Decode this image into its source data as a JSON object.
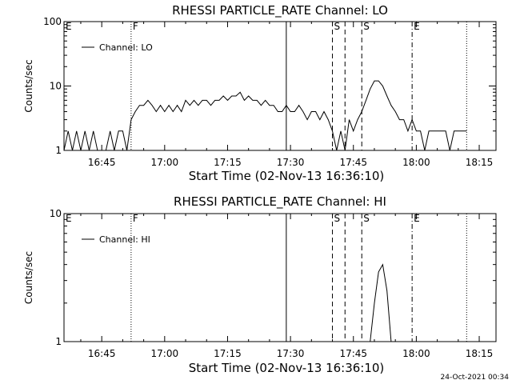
{
  "footer_date": "24-Oct-2021 00:34",
  "chart_data": [
    {
      "type": "line",
      "title": "RHESSI PARTICLE_RATE Channel: LO",
      "xlabel": "Start Time (02-Nov-13 16:36:10)",
      "ylabel": "Counts/sec",
      "yscale": "log",
      "ylim": [
        1,
        100
      ],
      "yticks": [
        {
          "value": 1,
          "label": "1"
        },
        {
          "value": 10,
          "label": "10"
        },
        {
          "value": 100,
          "label": "100"
        }
      ],
      "xlim": [
        "16:36",
        "18:19"
      ],
      "xticks": [
        "16:45",
        "17:00",
        "17:15",
        "17:30",
        "17:45",
        "18:00",
        "18:15"
      ],
      "legend": {
        "label": "Channel: LO",
        "position": "top-left"
      },
      "markers": [
        {
          "label": "E",
          "time": "16:36",
          "style": "none"
        },
        {
          "label": "F",
          "time": "16:52",
          "style": "dotted"
        },
        {
          "label": "",
          "time": "17:29",
          "style": "solid"
        },
        {
          "label": "S",
          "time": "17:40",
          "style": "dashed"
        },
        {
          "label": "",
          "time": "17:43",
          "style": "dashed"
        },
        {
          "label": "S",
          "time": "17:47",
          "style": "dashed"
        },
        {
          "label": "E",
          "time": "17:59",
          "style": "dashdot"
        },
        {
          "label": "",
          "time": "18:12",
          "style": "dotted"
        }
      ],
      "series": [
        {
          "points": [
            [
              "16:36",
              1
            ],
            [
              "16:37",
              2
            ],
            [
              "16:38",
              1
            ],
            [
              "16:39",
              2
            ],
            [
              "16:40",
              1
            ],
            [
              "16:41",
              2
            ],
            [
              "16:42",
              1
            ],
            [
              "16:43",
              2
            ],
            [
              "16:44",
              1
            ],
            [
              "16:45",
              1
            ],
            [
              "16:46",
              1
            ],
            [
              "16:47",
              2
            ],
            [
              "16:48",
              1
            ],
            [
              "16:49",
              2
            ],
            [
              "16:50",
              2
            ],
            [
              "16:51",
              1
            ],
            [
              "16:52",
              3
            ],
            [
              "16:53",
              4
            ],
            [
              "16:54",
              5
            ],
            [
              "16:55",
              5
            ],
            [
              "16:56",
              6
            ],
            [
              "16:57",
              5
            ],
            [
              "16:58",
              4
            ],
            [
              "16:59",
              5
            ],
            [
              "17:00",
              4
            ],
            [
              "17:01",
              5
            ],
            [
              "17:02",
              4
            ],
            [
              "17:03",
              5
            ],
            [
              "17:04",
              4
            ],
            [
              "17:05",
              6
            ],
            [
              "17:06",
              5
            ],
            [
              "17:07",
              6
            ],
            [
              "17:08",
              5
            ],
            [
              "17:09",
              6
            ],
            [
              "17:10",
              6
            ],
            [
              "17:11",
              5
            ],
            [
              "17:12",
              6
            ],
            [
              "17:13",
              6
            ],
            [
              "17:14",
              7
            ],
            [
              "17:15",
              6
            ],
            [
              "17:16",
              7
            ],
            [
              "17:17",
              7
            ],
            [
              "17:18",
              8
            ],
            [
              "17:19",
              6
            ],
            [
              "17:20",
              7
            ],
            [
              "17:21",
              6
            ],
            [
              "17:22",
              6
            ],
            [
              "17:23",
              5
            ],
            [
              "17:24",
              6
            ],
            [
              "17:25",
              5
            ],
            [
              "17:26",
              5
            ],
            [
              "17:27",
              4
            ],
            [
              "17:28",
              4
            ],
            [
              "17:29",
              5
            ],
            [
              "17:30",
              4
            ],
            [
              "17:31",
              4
            ],
            [
              "17:32",
              5
            ],
            [
              "17:33",
              4
            ],
            [
              "17:34",
              3
            ],
            [
              "17:35",
              4
            ],
            [
              "17:36",
              4
            ],
            [
              "17:37",
              3
            ],
            [
              "17:38",
              4
            ],
            [
              "17:39",
              3
            ],
            [
              "17:40",
              2
            ],
            [
              "17:41",
              1
            ],
            [
              "17:42",
              2
            ],
            [
              "17:43",
              1
            ],
            [
              "17:44",
              3
            ],
            [
              "17:45",
              2
            ],
            [
              "17:46",
              3
            ],
            [
              "17:47",
              4
            ],
            [
              "17:48",
              6
            ],
            [
              "17:49",
              9
            ],
            [
              "17:50",
              12
            ],
            [
              "17:51",
              12
            ],
            [
              "17:52",
              10
            ],
            [
              "17:53",
              7
            ],
            [
              "17:54",
              5
            ],
            [
              "17:55",
              4
            ],
            [
              "17:56",
              3
            ],
            [
              "17:57",
              3
            ],
            [
              "17:58",
              2
            ],
            [
              "17:59",
              3
            ],
            [
              "18:00",
              2
            ],
            [
              "18:01",
              2
            ],
            [
              "18:02",
              1
            ],
            [
              "18:03",
              2
            ],
            [
              "18:04",
              2
            ],
            [
              "18:05",
              2
            ],
            [
              "18:06",
              2
            ],
            [
              "18:07",
              2
            ],
            [
              "18:08",
              1
            ],
            [
              "18:09",
              2
            ],
            [
              "18:10",
              2
            ],
            [
              "18:11",
              2
            ],
            [
              "18:12",
              2
            ]
          ]
        }
      ]
    },
    {
      "type": "line",
      "title": "RHESSI PARTICLE_RATE Channel: HI",
      "xlabel": "Start Time (02-Nov-13 16:36:10)",
      "ylabel": "Counts/sec",
      "yscale": "log",
      "ylim": [
        1,
        10
      ],
      "yticks": [
        {
          "value": 1,
          "label": "1"
        },
        {
          "value": 10,
          "label": "10"
        }
      ],
      "xlim": [
        "16:36",
        "18:19"
      ],
      "xticks": [
        "16:45",
        "17:00",
        "17:15",
        "17:30",
        "17:45",
        "18:00",
        "18:15"
      ],
      "legend": {
        "label": "Channel: HI",
        "position": "top-left"
      },
      "markers": [
        {
          "label": "E",
          "time": "16:36",
          "style": "none"
        },
        {
          "label": "F",
          "time": "16:52",
          "style": "dotted"
        },
        {
          "label": "",
          "time": "17:29",
          "style": "solid"
        },
        {
          "label": "S",
          "time": "17:40",
          "style": "dashed"
        },
        {
          "label": "",
          "time": "17:43",
          "style": "dashed"
        },
        {
          "label": "S",
          "time": "17:47",
          "style": "dashed"
        },
        {
          "label": "E",
          "time": "17:59",
          "style": "dashdot"
        },
        {
          "label": "",
          "time": "18:12",
          "style": "dotted"
        }
      ],
      "series": [
        {
          "points": [
            [
              "17:49",
              1
            ],
            [
              "17:50",
              2
            ],
            [
              "17:51",
              3.5
            ],
            [
              "17:52",
              4
            ],
            [
              "17:53",
              2.5
            ],
            [
              "17:54",
              1
            ]
          ]
        }
      ]
    }
  ]
}
